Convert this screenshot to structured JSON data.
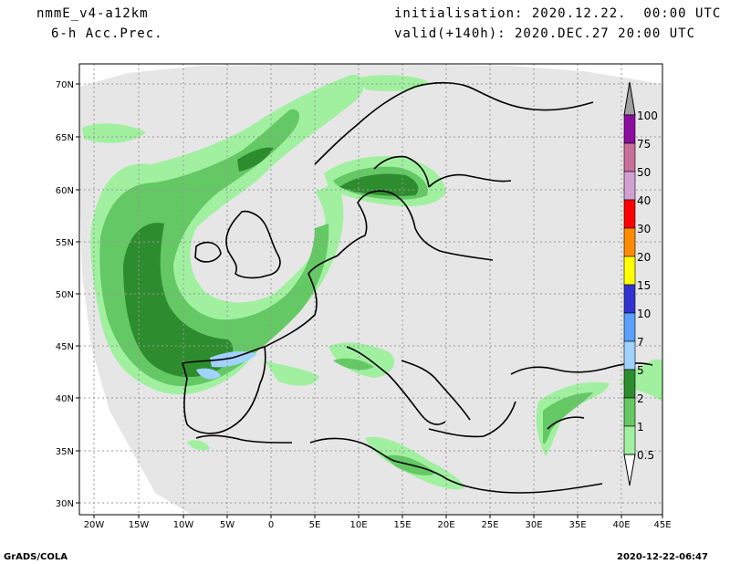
{
  "header": {
    "model": "nmmE_v4-a12km",
    "field": "6-h Acc.Prec.",
    "init": "initialisation: 2020.12.22.  00:00 UTC",
    "valid": "valid(+140h): 2020.DEC.27 20:00 UTC"
  },
  "footer": {
    "left": "GrADS/COLA",
    "right": "2020-12-22-06:47"
  },
  "axes": {
    "lat_labels": [
      "70N",
      "65N",
      "60N",
      "55N",
      "50N",
      "45N",
      "40N",
      "35N",
      "30N"
    ],
    "lon_labels": [
      "20W",
      "15W",
      "10W",
      "5W",
      "0",
      "5E",
      "10E",
      "15E",
      "20E",
      "25E",
      "30E",
      "35E",
      "40E",
      "45E"
    ]
  },
  "colorbar": {
    "labels": [
      "100",
      "75",
      "50",
      "40",
      "30",
      "20",
      "15",
      "10",
      "7",
      "5",
      "2",
      "1",
      "0.5"
    ],
    "colors": [
      "#a0a0a0",
      "#8c0da0",
      "#c8709a",
      "#d2a0d2",
      "#ff0000",
      "#ff8c00",
      "#ffff00",
      "#3232d2",
      "#5aa0ff",
      "#a0d2ff",
      "#2d8c2d",
      "#64c864",
      "#a0f0a0"
    ]
  },
  "colors": {
    "domain": "#e6e6e6",
    "ocean_outside": "#ffffff",
    "light_green": "#a0f0a0",
    "mid_green": "#64c864",
    "dark_green": "#2d8c2d",
    "light_blue": "#a0d2ff"
  }
}
